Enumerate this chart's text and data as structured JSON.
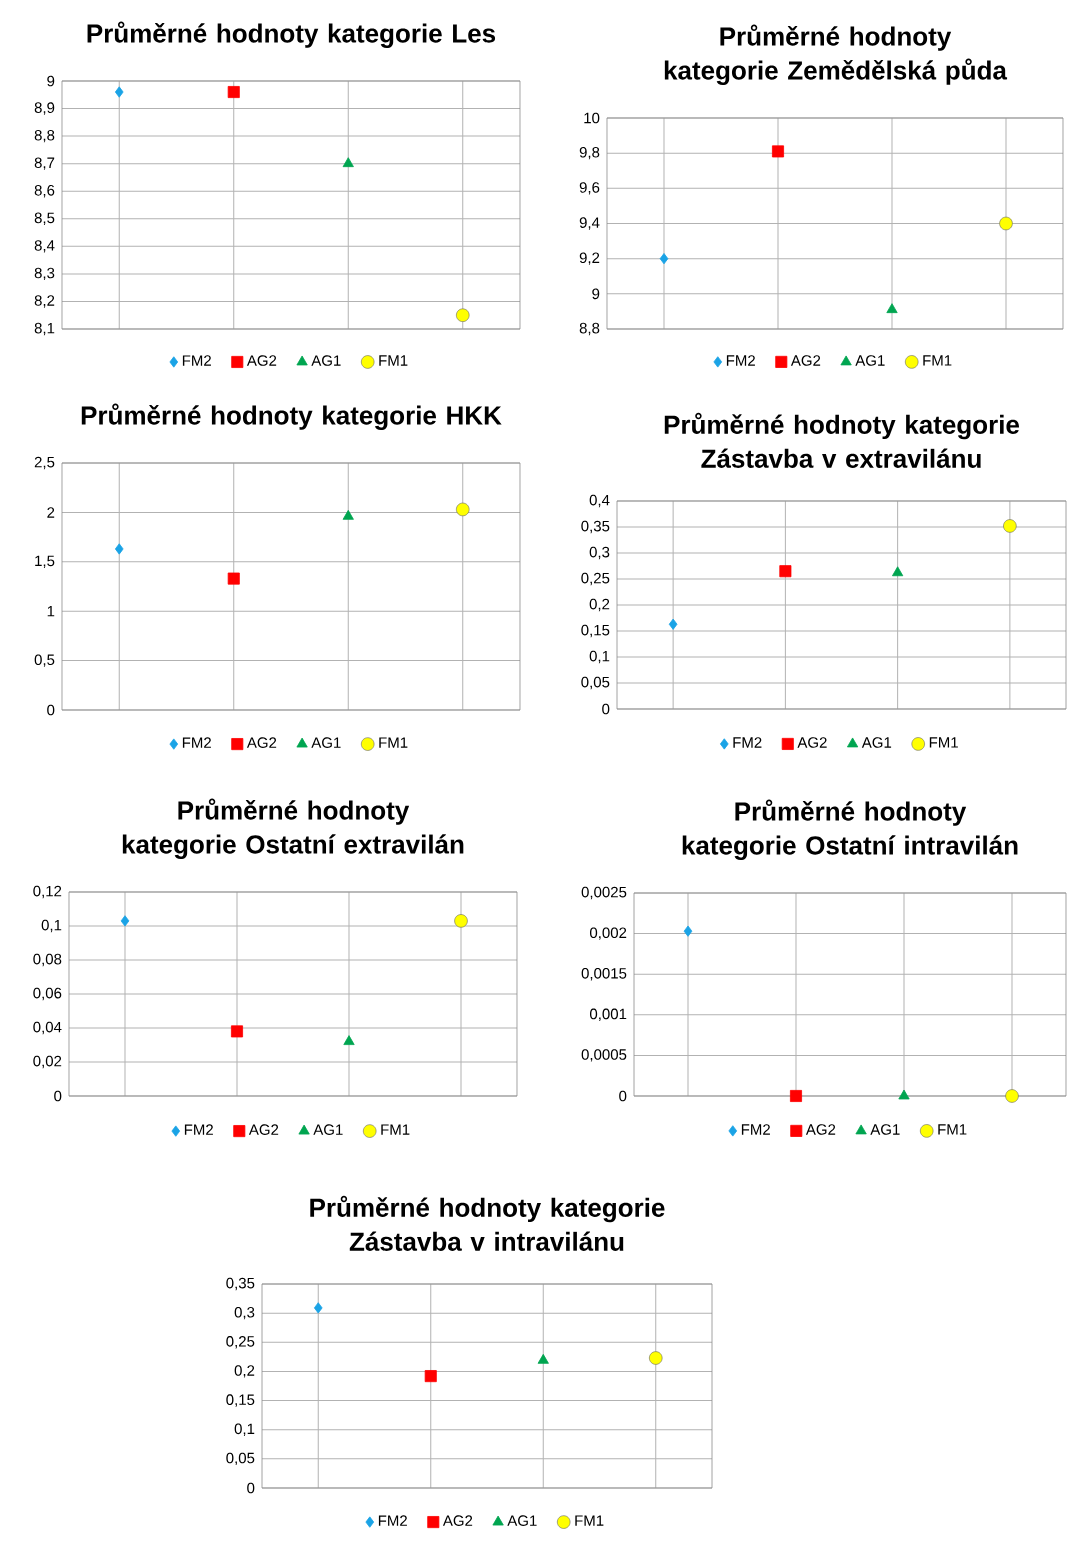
{
  "chart_data": [
    {
      "type": "scatter",
      "title": "Průměrné hodnoty kategorie Les",
      "categories": [
        null,
        null,
        null,
        null
      ],
      "ylim": [
        8.1,
        9
      ],
      "yticks": [
        {
          "value": 8.1,
          "label": "8,1"
        },
        {
          "value": 8.2,
          "label": "8,2"
        },
        {
          "value": 8.3,
          "label": "8,3"
        },
        {
          "value": 8.4,
          "label": "8,4"
        },
        {
          "value": 8.5,
          "label": "8,5"
        },
        {
          "value": 8.6,
          "label": "8,6"
        },
        {
          "value": 8.7,
          "label": "8,7"
        },
        {
          "value": 8.8,
          "label": "8,8"
        },
        {
          "value": 8.9,
          "label": "8,9"
        },
        9
      ],
      "grid": true,
      "legend": "bottom",
      "tick_labels": "y",
      "series": [
        {
          "name": "FM2",
          "color": "#1aa3e6",
          "marker": "diamond",
          "values": [
            8.96,
            null,
            null,
            null
          ]
        },
        {
          "name": "AG2",
          "color": "#ff0000",
          "marker": "square",
          "values": [
            null,
            8.96,
            null,
            null
          ]
        },
        {
          "name": "AG1",
          "color": "#00a550",
          "marker": "triangle",
          "values": [
            null,
            null,
            8.7,
            null
          ]
        },
        {
          "name": "FM1",
          "color": "#ffff00",
          "marker": "circle",
          "values": [
            null,
            null,
            null,
            8.15
          ]
        }
      ]
    },
    {
      "type": "scatter",
      "title": "Průměrné hodnoty kategorie Zemědělská půda",
      "categories": [
        null,
        null,
        null,
        null
      ],
      "ylim": [
        8.8,
        10
      ],
      "yticks": [
        {
          "value": 8.8,
          "label": "8,8"
        },
        9,
        {
          "value": 9.2,
          "label": "9,2"
        },
        {
          "value": 9.4,
          "label": "9,4"
        },
        {
          "value": 9.6,
          "label": "9,6"
        },
        {
          "value": 9.8,
          "label": "9,8"
        },
        10
      ],
      "grid": true,
      "legend": "bottom",
      "tick_labels": "y",
      "series": [
        {
          "name": "FM2",
          "color": "#1aa3e6",
          "marker": "diamond",
          "values": [
            9.2,
            null,
            null,
            null
          ]
        },
        {
          "name": "AG2",
          "color": "#ff0000",
          "marker": "square",
          "values": [
            null,
            9.81,
            null,
            null
          ]
        },
        {
          "name": "AG1",
          "color": "#00a550",
          "marker": "triangle",
          "values": [
            null,
            null,
            8.91,
            null
          ]
        },
        {
          "name": "FM1",
          "color": "#ffff00",
          "marker": "circle",
          "values": [
            null,
            null,
            null,
            9.4
          ]
        }
      ]
    },
    {
      "type": "scatter",
      "title": "Průměrné hodnoty kategorie HKK",
      "categories": [
        null,
        null,
        null,
        null
      ],
      "ylim": [
        0,
        2.5
      ],
      "yticks": [
        0,
        {
          "value": 0.5,
          "label": "0,5"
        },
        1,
        {
          "value": 1.5,
          "label": "1,5"
        },
        2,
        {
          "value": 2.5,
          "label": "2,5"
        }
      ],
      "grid": true,
      "legend": "bottom",
      "tick_labels": "y",
      "series": [
        {
          "name": "FM2",
          "color": "#1aa3e6",
          "marker": "diamond",
          "values": [
            1.63,
            null,
            null,
            null
          ]
        },
        {
          "name": "AG2",
          "color": "#ff0000",
          "marker": "square",
          "values": [
            null,
            1.33,
            null,
            null
          ]
        },
        {
          "name": "AG1",
          "color": "#00a550",
          "marker": "triangle",
          "values": [
            null,
            null,
            1.96,
            null
          ]
        },
        {
          "name": "FM1",
          "color": "#ffff00",
          "marker": "circle",
          "values": [
            null,
            null,
            null,
            2.03
          ]
        }
      ]
    },
    {
      "type": "scatter",
      "title": "Průměrné hodnoty kategorie Zástavba v extravilánu",
      "categories": [
        null,
        null,
        null,
        null
      ],
      "ylim": [
        0,
        0.4
      ],
      "yticks": [
        0,
        {
          "value": 0.05,
          "label": "0,05"
        },
        {
          "value": 0.1,
          "label": "0,1"
        },
        {
          "value": 0.15,
          "label": "0,15"
        },
        {
          "value": 0.2,
          "label": "0,2"
        },
        {
          "value": 0.25,
          "label": "0,25"
        },
        {
          "value": 0.3,
          "label": "0,3"
        },
        {
          "value": 0.35,
          "label": "0,35"
        },
        {
          "value": 0.4,
          "label": "0,4"
        }
      ],
      "grid": true,
      "legend": "bottom",
      "tick_labels": "y",
      "series": [
        {
          "name": "FM2",
          "color": "#1aa3e6",
          "marker": "diamond",
          "values": [
            0.163,
            null,
            null,
            null
          ]
        },
        {
          "name": "AG2",
          "color": "#ff0000",
          "marker": "square",
          "values": [
            null,
            0.265,
            null,
            null
          ]
        },
        {
          "name": "AG1",
          "color": "#00a550",
          "marker": "triangle",
          "values": [
            null,
            null,
            0.262,
            null
          ]
        },
        {
          "name": "FM1",
          "color": "#ffff00",
          "marker": "circle",
          "values": [
            null,
            null,
            null,
            0.352
          ]
        }
      ]
    },
    {
      "type": "scatter",
      "title": "Průměrné hodnoty kategorie Ostatní extravilán",
      "categories": [
        null,
        null,
        null,
        null
      ],
      "ylim": [
        0,
        0.12
      ],
      "yticks": [
        0,
        {
          "value": 0.02,
          "label": "0,02"
        },
        {
          "value": 0.04,
          "label": "0,04"
        },
        {
          "value": 0.06,
          "label": "0,06"
        },
        {
          "value": 0.08,
          "label": "0,08"
        },
        {
          "value": 0.1,
          "label": "0,1"
        },
        {
          "value": 0.12,
          "label": "0,12"
        }
      ],
      "grid": true,
      "legend": "bottom",
      "tick_labels": "y",
      "series": [
        {
          "name": "FM2",
          "color": "#1aa3e6",
          "marker": "diamond",
          "values": [
            0.103,
            null,
            null,
            null
          ]
        },
        {
          "name": "AG2",
          "color": "#ff0000",
          "marker": "square",
          "values": [
            null,
            0.038,
            null,
            null
          ]
        },
        {
          "name": "AG1",
          "color": "#00a550",
          "marker": "triangle",
          "values": [
            null,
            null,
            0.032,
            null
          ]
        },
        {
          "name": "FM1",
          "color": "#ffff00",
          "marker": "circle",
          "values": [
            null,
            null,
            null,
            0.103
          ]
        }
      ]
    },
    {
      "type": "scatter",
      "title": "Průměrné hodnoty kategorie Ostatní intravilán",
      "categories": [
        null,
        null,
        null,
        null
      ],
      "ylim": [
        0,
        0.0025
      ],
      "yticks": [
        0,
        {
          "value": 0.0005,
          "label": "0,0005"
        },
        {
          "value": 0.001,
          "label": "0,001"
        },
        {
          "value": 0.0015,
          "label": "0,0015"
        },
        {
          "value": 0.002,
          "label": "0,002"
        },
        {
          "value": 0.0025,
          "label": "0,0025"
        }
      ],
      "grid": true,
      "legend": "bottom",
      "tick_labels": "y",
      "series": [
        {
          "name": "FM2",
          "color": "#1aa3e6",
          "marker": "diamond",
          "values": [
            0.00203,
            null,
            null,
            null
          ]
        },
        {
          "name": "AG2",
          "color": "#ff0000",
          "marker": "square",
          "values": [
            null,
            0,
            null,
            null
          ]
        },
        {
          "name": "AG1",
          "color": "#00a550",
          "marker": "triangle",
          "values": [
            null,
            null,
            0,
            null
          ]
        },
        {
          "name": "FM1",
          "color": "#ffff00",
          "marker": "circle",
          "values": [
            null,
            null,
            null,
            0
          ]
        }
      ]
    },
    {
      "type": "scatter",
      "title": "Průměrné hodnoty kategorie Zástavba v intravilánu",
      "categories": [
        null,
        null,
        null,
        null
      ],
      "ylim": [
        0,
        0.35
      ],
      "yticks": [
        0,
        {
          "value": 0.05,
          "label": "0,05"
        },
        {
          "value": 0.1,
          "label": "0,1"
        },
        {
          "value": 0.15,
          "label": "0,15"
        },
        {
          "value": 0.2,
          "label": "0,2"
        },
        {
          "value": 0.25,
          "label": "0,25"
        },
        {
          "value": 0.3,
          "label": "0,3"
        },
        {
          "value": 0.35,
          "label": "0,35"
        }
      ],
      "grid": true,
      "legend": "bottom",
      "tick_labels": "y",
      "series": [
        {
          "name": "FM2",
          "color": "#1aa3e6",
          "marker": "diamond",
          "values": [
            0.309,
            null,
            null,
            null
          ]
        },
        {
          "name": "AG2",
          "color": "#ff0000",
          "marker": "square",
          "values": [
            null,
            0.192,
            null,
            null
          ]
        },
        {
          "name": "AG1",
          "color": "#00a550",
          "marker": "triangle",
          "values": [
            null,
            null,
            0.219,
            null
          ]
        },
        {
          "name": "FM1",
          "color": "#ffff00",
          "marker": "circle",
          "values": [
            null,
            null,
            null,
            0.223
          ]
        }
      ]
    }
  ]
}
